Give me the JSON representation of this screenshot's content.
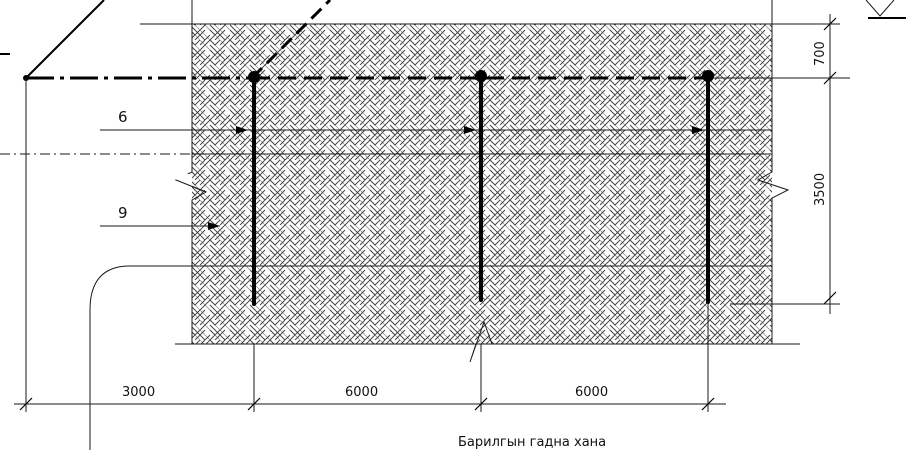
{
  "labels": {
    "layer_6": "6",
    "layer_9": "9",
    "height_top": "700",
    "height_main": "3500",
    "span_left": "3000",
    "span_mid": "6000",
    "span_right": "6000",
    "caption": "Барилгын гадна хана"
  },
  "colors": {
    "line": "#000000",
    "hatch": "#3a3a3a",
    "background": "#ffffff"
  }
}
